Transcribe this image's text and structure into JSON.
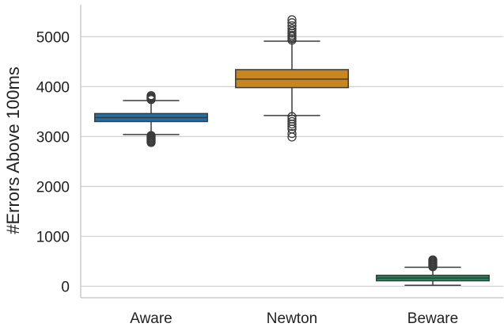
{
  "chart_data": {
    "type": "box",
    "title": "",
    "xlabel": "",
    "ylabel": "#Errors Above 100ms",
    "ylim": [
      -230,
      5640
    ],
    "yticks": [
      0,
      1000,
      2000,
      3000,
      4000,
      5000
    ],
    "grid": "horizontal",
    "legend": "none",
    "categories": [
      "Aware",
      "Newton",
      "Beware"
    ],
    "boxes": [
      {
        "category": "Aware",
        "color": "#1f6fa8",
        "whisker_low": 3040,
        "q1": 3300,
        "median": 3380,
        "q3": 3460,
        "whisker_high": 3720,
        "outliers": [
          2880,
          2900,
          2920,
          2940,
          2960,
          2980,
          3000,
          3020,
          3740,
          3760,
          3780,
          3800,
          3820
        ]
      },
      {
        "category": "Newton",
        "color": "#c8861f",
        "whisker_low": 3420,
        "q1": 3980,
        "median": 4150,
        "q3": 4340,
        "whisker_high": 4910,
        "outliers": [
          2990,
          3060,
          3150,
          3200,
          3250,
          3300,
          3350,
          3400,
          4930,
          4960,
          5000,
          5030,
          5070,
          5110,
          5160,
          5220,
          5280,
          5340
        ]
      },
      {
        "category": "Beware",
        "color": "#1f8a5e",
        "whisker_low": 20,
        "q1": 110,
        "median": 165,
        "q3": 220,
        "whisker_high": 380,
        "outliers": [
          390,
          410,
          430,
          450,
          470,
          490,
          510,
          530
        ]
      }
    ]
  }
}
